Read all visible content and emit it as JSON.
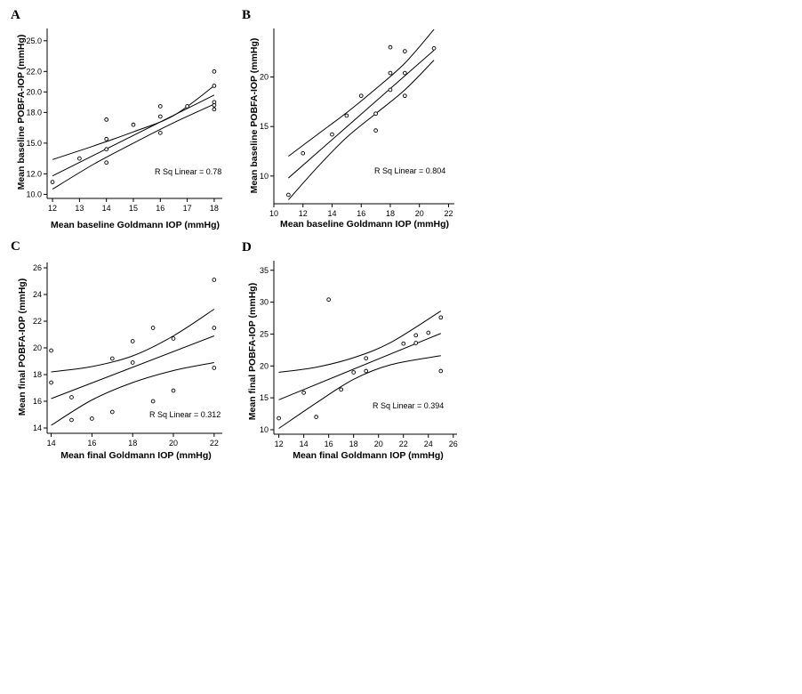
{
  "figure": {
    "panels": [
      "A",
      "B",
      "C",
      "D"
    ]
  },
  "chart_data": [
    {
      "panel": "A",
      "type": "scatter",
      "xlabel": "Mean baseline Goldmann IOP (mmHg)",
      "ylabel": "Mean baseline POBFA-IOP (mmHg)",
      "xlim": [
        11.8,
        18.3
      ],
      "ylim": [
        9.6,
        26.2
      ],
      "xticks": [
        12,
        13,
        14,
        15,
        16,
        17,
        18
      ],
      "yticks": [
        10,
        12,
        15,
        18,
        20,
        22,
        25
      ],
      "ytick_labels": [
        "10.0",
        "12.0",
        "15.0",
        "18.0",
        "20.0",
        "22.0",
        "25.0"
      ],
      "points": [
        [
          12,
          11.2
        ],
        [
          13,
          13.5
        ],
        [
          14,
          17.3
        ],
        [
          14,
          15.4
        ],
        [
          14,
          14.4
        ],
        [
          14,
          13.1
        ],
        [
          15,
          16.8
        ],
        [
          16,
          18.6
        ],
        [
          16,
          17.6
        ],
        [
          16,
          16.0
        ],
        [
          17,
          18.6
        ],
        [
          18,
          22.0
        ],
        [
          18,
          20.6
        ],
        [
          18,
          19.0
        ],
        [
          18,
          18.7
        ],
        [
          18,
          18.3
        ]
      ],
      "fit": [
        [
          12,
          11.8
        ],
        [
          18,
          19.7
        ]
      ],
      "ci_upper": [
        [
          12,
          13.4
        ],
        [
          13.5,
          14.7
        ],
        [
          15,
          16.1
        ],
        [
          16.5,
          17.7
        ],
        [
          18,
          20.6
        ]
      ],
      "ci_lower": [
        [
          12,
          10.5
        ],
        [
          13.5,
          12.9
        ],
        [
          15,
          15.0
        ],
        [
          16.5,
          17.0
        ],
        [
          18,
          18.8
        ]
      ],
      "annotation": "R Sq Linear = 0.78"
    },
    {
      "panel": "B",
      "type": "scatter",
      "xlabel": "Mean baseline Goldmann IOP (mmHg)",
      "ylabel": "Mean baseline POBFA-IOP (mmHg)",
      "xlim": [
        10,
        22.4
      ],
      "ylim": [
        7.2,
        24.9
      ],
      "xticks": [
        10,
        12,
        14,
        16,
        18,
        20,
        22
      ],
      "yticks": [
        10,
        15,
        20
      ],
      "ytick_labels": [
        "10",
        "15",
        "20"
      ],
      "points": [
        [
          11,
          8.1
        ],
        [
          12,
          12.3
        ],
        [
          14,
          14.2
        ],
        [
          15,
          16.1
        ],
        [
          16,
          18.1
        ],
        [
          17,
          16.3
        ],
        [
          17,
          14.6
        ],
        [
          18,
          23.0
        ],
        [
          18,
          20.4
        ],
        [
          18,
          18.7
        ],
        [
          19,
          22.6
        ],
        [
          19,
          20.4
        ],
        [
          19,
          18.1
        ],
        [
          21,
          22.9
        ]
      ],
      "fit": [
        [
          11,
          9.8
        ],
        [
          21,
          22.7
        ]
      ],
      "ci_upper": [
        [
          11,
          12.0
        ],
        [
          13,
          14.2
        ],
        [
          15,
          16.4
        ],
        [
          17,
          18.8
        ],
        [
          19,
          21.4
        ],
        [
          21,
          24.8
        ]
      ],
      "ci_lower": [
        [
          11,
          7.6
        ],
        [
          13,
          10.9
        ],
        [
          15,
          13.9
        ],
        [
          17,
          16.3
        ],
        [
          19,
          18.7
        ],
        [
          21,
          21.7
        ]
      ],
      "annotation": "R Sq Linear = 0.804"
    },
    {
      "panel": "C",
      "type": "scatter",
      "xlabel": "Mean final Goldmann IOP (mmHg)",
      "ylabel": "Mean final POBFA-IOP (mmHg)",
      "xlim": [
        13.8,
        22.4
      ],
      "ylim": [
        13.6,
        26.4
      ],
      "xticks": [
        14,
        16,
        18,
        20,
        22
      ],
      "yticks": [
        14,
        16,
        18,
        20,
        22,
        24,
        26
      ],
      "ytick_labels": [
        "14",
        "16",
        "18",
        "20",
        "22",
        "24",
        "26"
      ],
      "points": [
        [
          14,
          19.8
        ],
        [
          14,
          17.4
        ],
        [
          15,
          16.3
        ],
        [
          15,
          14.6
        ],
        [
          16,
          14.7
        ],
        [
          17,
          19.2
        ],
        [
          17,
          15.2
        ],
        [
          18,
          20.5
        ],
        [
          18,
          18.9
        ],
        [
          19,
          21.5
        ],
        [
          19,
          16.0
        ],
        [
          20,
          20.7
        ],
        [
          20,
          16.8
        ],
        [
          22,
          25.1
        ],
        [
          22,
          21.5
        ],
        [
          22,
          18.5
        ]
      ],
      "fit": [
        [
          14,
          16.2
        ],
        [
          22,
          20.9
        ]
      ],
      "ci_upper": [
        [
          14,
          18.2
        ],
        [
          16,
          18.6
        ],
        [
          18,
          19.4
        ],
        [
          20,
          20.9
        ],
        [
          22,
          22.9
        ]
      ],
      "ci_lower": [
        [
          14,
          14.2
        ],
        [
          16,
          16.1
        ],
        [
          18,
          17.4
        ],
        [
          20,
          18.3
        ],
        [
          22,
          18.9
        ]
      ],
      "annotation": "R Sq Linear = 0.312"
    },
    {
      "panel": "D",
      "type": "scatter",
      "xlabel": "Mean final Goldmann IOP (mmHg)",
      "ylabel": "Mean final POBFA-IOP (mmHg)",
      "xlim": [
        11.6,
        26.3
      ],
      "ylim": [
        9.3,
        36.5
      ],
      "xticks": [
        12,
        14,
        16,
        18,
        20,
        22,
        24,
        26
      ],
      "yticks": [
        10,
        15,
        20,
        25,
        30,
        35
      ],
      "ytick_labels": [
        "10",
        "15",
        "20",
        "25",
        "30",
        "35"
      ],
      "points": [
        [
          12,
          11.8
        ],
        [
          14,
          15.8
        ],
        [
          15,
          12.0
        ],
        [
          16,
          30.4
        ],
        [
          17,
          16.3
        ],
        [
          18,
          19.0
        ],
        [
          19,
          21.2
        ],
        [
          19,
          19.2
        ],
        [
          22,
          23.5
        ],
        [
          23,
          24.8
        ],
        [
          23,
          23.6
        ],
        [
          24,
          25.2
        ],
        [
          25,
          27.6
        ],
        [
          25,
          19.2
        ]
      ],
      "fit": [
        [
          12,
          14.7
        ],
        [
          25,
          25.1
        ]
      ],
      "ci_upper": [
        [
          12,
          19.0
        ],
        [
          15,
          19.8
        ],
        [
          18,
          21.3
        ],
        [
          21,
          23.7
        ],
        [
          25,
          28.6
        ]
      ],
      "ci_lower": [
        [
          12,
          10.2
        ],
        [
          15,
          14.2
        ],
        [
          18,
          17.9
        ],
        [
          21,
          20.2
        ],
        [
          25,
          21.6
        ]
      ],
      "annotation": "R Sq Linear = 0.394"
    }
  ]
}
